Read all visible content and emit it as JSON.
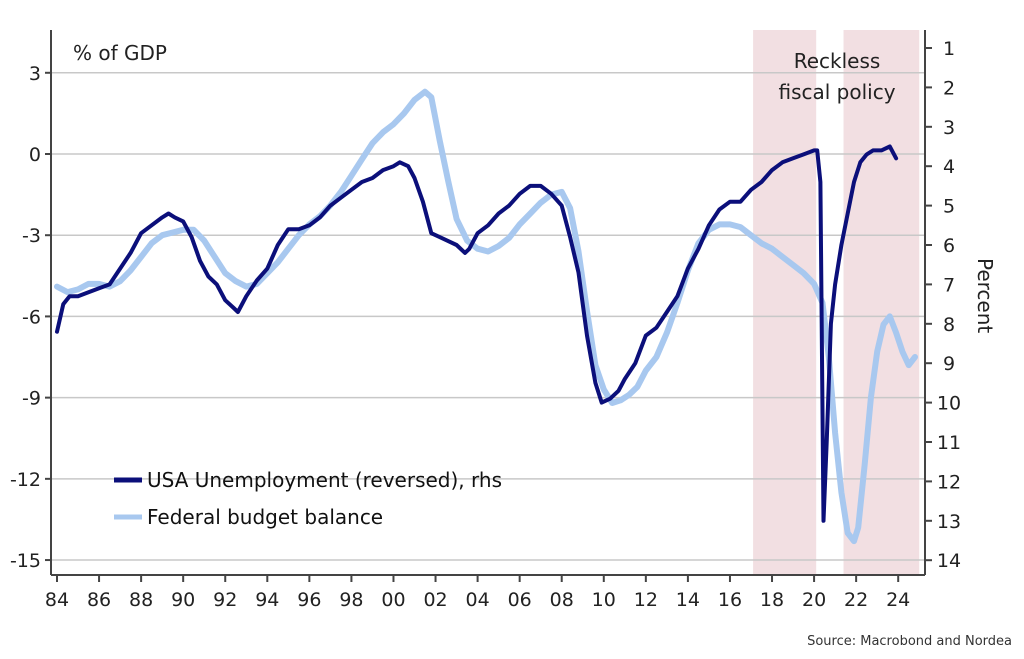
{
  "chart_data": {
    "type": "line",
    "title": "",
    "left_axis_label": "% of GDP",
    "right_axis_label": "Percent",
    "source": "Source: Macrobond and Nordea",
    "annotation": [
      "Reckless",
      "fiscal policy"
    ],
    "x_range": [
      1984,
      2025
    ],
    "x_ticks": [
      1984,
      1986,
      1988,
      1990,
      1992,
      1994,
      1996,
      1998,
      2000,
      2002,
      2004,
      2006,
      2008,
      2010,
      2012,
      2014,
      2016,
      2018,
      2020,
      2022,
      2024
    ],
    "x_tick_labels": [
      "84",
      "86",
      "88",
      "90",
      "92",
      "94",
      "96",
      "98",
      "00",
      "02",
      "04",
      "06",
      "08",
      "10",
      "12",
      "14",
      "16",
      "18",
      "20",
      "22",
      "24"
    ],
    "left_ylim": [
      -15.5,
      4.5
    ],
    "left_ticks": [
      3,
      0,
      -3,
      -6,
      -9,
      -12,
      -15
    ],
    "left_tick_labels": [
      "3",
      "0",
      "-3",
      "-6",
      "-9",
      "-12",
      "-15"
    ],
    "right_ylim_reversed": [
      0.4,
      14.5
    ],
    "right_ticks": [
      1,
      2,
      3,
      4,
      5,
      6,
      7,
      8,
      9,
      10,
      11,
      12,
      13,
      14
    ],
    "right_tick_labels": [
      "1",
      "2",
      "3",
      "4",
      "5",
      "6",
      "7",
      "8",
      "9",
      "10",
      "11",
      "12",
      "13",
      "14"
    ],
    "shaded_periods": [
      [
        2017.1,
        2020.1
      ],
      [
        2021.4,
        2025.0
      ]
    ],
    "grid": true,
    "legend_position": "bottom-left",
    "colors": {
      "unemployment": "#0b0f7a",
      "budget": "#a8c8ef",
      "shade": "#f2dfe2",
      "grid": "#c8c8c8",
      "axis": "#444444"
    },
    "series": [
      {
        "name": "USA Unemployment (reversed), rhs",
        "axis": "right",
        "x": [
          1984.0,
          1984.3,
          1984.6,
          1985.0,
          1985.5,
          1986.0,
          1986.5,
          1987.0,
          1987.5,
          1988.0,
          1988.5,
          1989.0,
          1989.3,
          1989.6,
          1990.0,
          1990.4,
          1990.8,
          1991.2,
          1991.6,
          1992.0,
          1992.4,
          1992.6,
          1993.0,
          1993.5,
          1994.0,
          1994.5,
          1995.0,
          1995.5,
          1996.0,
          1996.5,
          1997.0,
          1997.5,
          1998.0,
          1998.5,
          1999.0,
          1999.5,
          2000.0,
          2000.3,
          2000.7,
          2001.0,
          2001.4,
          2001.8,
          2002.2,
          2002.6,
          2003.0,
          2003.4,
          2003.6,
          2004.0,
          2004.5,
          2005.0,
          2005.5,
          2006.0,
          2006.5,
          2007.0,
          2007.5,
          2008.0,
          2008.4,
          2008.8,
          2009.2,
          2009.6,
          2009.9,
          2010.3,
          2010.7,
          2011.0,
          2011.5,
          2012.0,
          2012.5,
          2013.0,
          2013.5,
          2014.0,
          2014.5,
          2015.0,
          2015.5,
          2016.0,
          2016.5,
          2017.0,
          2017.5,
          2018.0,
          2018.5,
          2019.0,
          2019.5,
          2020.0,
          2020.15,
          2020.3,
          2020.45,
          2020.6,
          2020.8,
          2021.0,
          2021.3,
          2021.6,
          2021.9,
          2022.2,
          2022.5,
          2022.8,
          2023.2,
          2023.6,
          2023.9
        ],
        "values": [
          8.2,
          7.5,
          7.3,
          7.3,
          7.2,
          7.1,
          7.0,
          6.6,
          6.2,
          5.7,
          5.5,
          5.3,
          5.2,
          5.3,
          5.4,
          5.8,
          6.4,
          6.8,
          7.0,
          7.4,
          7.6,
          7.7,
          7.3,
          6.9,
          6.6,
          6.0,
          5.6,
          5.6,
          5.5,
          5.3,
          5.0,
          4.8,
          4.6,
          4.4,
          4.3,
          4.1,
          4.0,
          3.9,
          4.0,
          4.3,
          4.9,
          5.7,
          5.8,
          5.9,
          6.0,
          6.2,
          6.1,
          5.7,
          5.5,
          5.2,
          5.0,
          4.7,
          4.5,
          4.5,
          4.7,
          5.0,
          5.8,
          6.7,
          8.3,
          9.5,
          10.0,
          9.9,
          9.7,
          9.4,
          9.0,
          8.3,
          8.1,
          7.7,
          7.3,
          6.6,
          6.1,
          5.5,
          5.1,
          4.9,
          4.9,
          4.6,
          4.4,
          4.1,
          3.9,
          3.8,
          3.7,
          3.6,
          3.6,
          4.4,
          13.0,
          11.0,
          8.0,
          7.0,
          6.0,
          5.2,
          4.4,
          3.9,
          3.7,
          3.6,
          3.6,
          3.5,
          3.8
        ]
      },
      {
        "name": "Federal budget balance",
        "axis": "left",
        "x": [
          1984.0,
          1984.5,
          1985.0,
          1985.5,
          1986.0,
          1986.5,
          1987.0,
          1987.5,
          1988.0,
          1988.5,
          1989.0,
          1989.5,
          1990.0,
          1990.5,
          1991.0,
          1991.5,
          1992.0,
          1992.5,
          1993.0,
          1993.5,
          1994.0,
          1994.5,
          1995.0,
          1995.5,
          1996.0,
          1996.5,
          1997.0,
          1997.5,
          1998.0,
          1998.5,
          1999.0,
          1999.5,
          2000.0,
          2000.5,
          2001.0,
          2001.5,
          2001.8,
          2002.2,
          2002.6,
          2003.0,
          2003.5,
          2004.0,
          2004.5,
          2005.0,
          2005.5,
          2006.0,
          2006.5,
          2007.0,
          2007.5,
          2008.0,
          2008.4,
          2008.8,
          2009.2,
          2009.6,
          2010.0,
          2010.4,
          2010.8,
          2011.2,
          2011.6,
          2012.0,
          2012.5,
          2013.0,
          2013.5,
          2014.0,
          2014.5,
          2015.0,
          2015.5,
          2016.0,
          2016.5,
          2017.0,
          2017.5,
          2018.0,
          2018.5,
          2019.0,
          2019.5,
          2020.0,
          2020.4,
          2020.7,
          2021.0,
          2021.3,
          2021.6,
          2021.9,
          2022.1,
          2022.4,
          2022.7,
          2023.0,
          2023.3,
          2023.6,
          2023.9,
          2024.2,
          2024.5,
          2024.8
        ],
        "values": [
          -4.9,
          -5.1,
          -5.0,
          -4.8,
          -4.8,
          -4.9,
          -4.7,
          -4.3,
          -3.8,
          -3.3,
          -3.0,
          -2.9,
          -2.8,
          -2.8,
          -3.2,
          -3.8,
          -4.4,
          -4.7,
          -4.9,
          -4.8,
          -4.4,
          -4.0,
          -3.5,
          -3.0,
          -2.6,
          -2.3,
          -1.9,
          -1.4,
          -0.8,
          -0.2,
          0.4,
          0.8,
          1.1,
          1.5,
          2.0,
          2.3,
          2.1,
          0.5,
          -1.0,
          -2.4,
          -3.2,
          -3.5,
          -3.6,
          -3.4,
          -3.1,
          -2.6,
          -2.2,
          -1.8,
          -1.5,
          -1.4,
          -2.0,
          -3.6,
          -5.8,
          -7.8,
          -8.7,
          -9.2,
          -9.1,
          -8.9,
          -8.6,
          -8.0,
          -7.5,
          -6.6,
          -5.5,
          -4.3,
          -3.3,
          -2.8,
          -2.6,
          -2.6,
          -2.7,
          -3.0,
          -3.3,
          -3.5,
          -3.8,
          -4.1,
          -4.4,
          -4.8,
          -5.5,
          -7.5,
          -10.3,
          -12.5,
          -14.0,
          -14.3,
          -13.8,
          -11.5,
          -9.0,
          -7.3,
          -6.3,
          -6.0,
          -6.6,
          -7.3,
          -7.8,
          -7.5
        ]
      }
    ]
  }
}
